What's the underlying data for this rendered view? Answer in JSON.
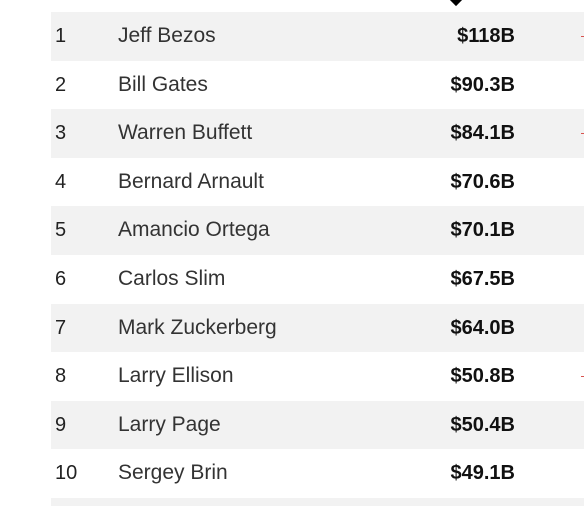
{
  "billionaires": {
    "rows": [
      {
        "rank": "1",
        "name": "Jeff Bezos",
        "net_worth": "$118B",
        "shaded": true,
        "edge_mark": true
      },
      {
        "rank": "2",
        "name": "Bill Gates",
        "net_worth": "$90.3B",
        "shaded": false,
        "edge_mark": false
      },
      {
        "rank": "3",
        "name": "Warren Buffett",
        "net_worth": "$84.1B",
        "shaded": true,
        "edge_mark": true
      },
      {
        "rank": "4",
        "name": "Bernard Arnault",
        "net_worth": "$70.6B",
        "shaded": false,
        "edge_mark": false
      },
      {
        "rank": "5",
        "name": "Amancio Ortega",
        "net_worth": "$70.1B",
        "shaded": true,
        "edge_mark": false
      },
      {
        "rank": "6",
        "name": "Carlos Slim",
        "net_worth": "$67.5B",
        "shaded": false,
        "edge_mark": false
      },
      {
        "rank": "7",
        "name": "Mark Zuckerberg",
        "net_worth": "$64.0B",
        "shaded": true,
        "edge_mark": false
      },
      {
        "rank": "8",
        "name": "Larry Ellison",
        "net_worth": "$50.8B",
        "shaded": false,
        "edge_mark": true
      },
      {
        "rank": "9",
        "name": "Larry Page",
        "net_worth": "$50.4B",
        "shaded": true,
        "edge_mark": false
      },
      {
        "rank": "10",
        "name": "Sergey Brin",
        "net_worth": "$49.1B",
        "shaded": false,
        "edge_mark": false
      }
    ]
  },
  "colors": {
    "row_stripe": "#f2f2f2",
    "edge_mark": "#d9534f",
    "sort_indicator": "#000000"
  },
  "icons": {
    "sort_indicator": "sort-descending-icon"
  }
}
